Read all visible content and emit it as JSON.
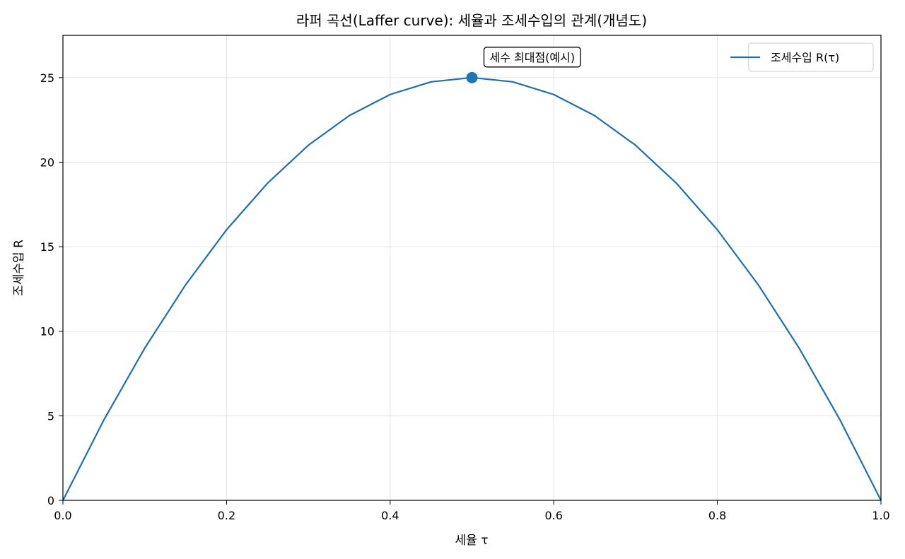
{
  "chart_data": {
    "type": "line",
    "title": "라퍼 곡선(Laffer curve): 세율과 조세수입의 관계(개념도)",
    "xlabel": "세율 τ",
    "ylabel": "조세수입 R",
    "xlim": [
      0.0,
      1.0
    ],
    "ylim": [
      0,
      27.5
    ],
    "xticks": [
      0.0,
      0.2,
      0.4,
      0.6,
      0.8,
      1.0
    ],
    "xtick_labels": [
      "0.0",
      "0.2",
      "0.4",
      "0.6",
      "0.8",
      "1.0"
    ],
    "yticks": [
      0,
      5,
      10,
      15,
      20,
      25
    ],
    "ytick_labels": [
      "0",
      "5",
      "10",
      "15",
      "20",
      "25"
    ],
    "grid": true,
    "legend_position": "top-right",
    "series": [
      {
        "name": "조세수입 R(τ)",
        "color": "#1f6fb0",
        "x": [
          0.0,
          0.05,
          0.1,
          0.15,
          0.2,
          0.25,
          0.3,
          0.35,
          0.4,
          0.45,
          0.5,
          0.55,
          0.6,
          0.65,
          0.7,
          0.75,
          0.8,
          0.85,
          0.9,
          0.95,
          1.0
        ],
        "y": [
          0.0,
          4.75,
          9.0,
          12.75,
          16.0,
          18.75,
          21.0,
          22.75,
          24.0,
          24.75,
          25.0,
          24.75,
          24.0,
          22.75,
          21.0,
          18.75,
          16.0,
          12.75,
          9.0,
          4.75,
          0.0
        ]
      }
    ],
    "annotations": [
      {
        "text": "세수 최대점(예시)",
        "x": 0.5,
        "y": 25.0,
        "marker_color": "#1f77b4"
      }
    ]
  }
}
